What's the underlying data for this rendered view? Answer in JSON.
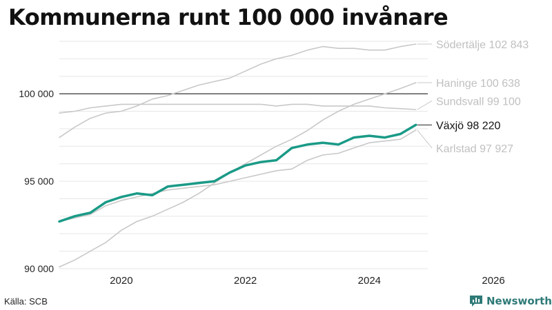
{
  "title": "Kommunerna runt 100 000 invånare",
  "source": "Källa: SCB",
  "brand": "Newsworthy",
  "chart_data": {
    "type": "line",
    "title": "Kommunerna runt 100 000 invånare",
    "xlabel": "",
    "ylabel": "",
    "xlim": [
      2019.0,
      2026.5
    ],
    "ylim": [
      90000,
      103000
    ],
    "x_ticks": [
      2020,
      2022,
      2024,
      2026
    ],
    "y_ticks": [
      90000,
      95000,
      100000
    ],
    "y_tick_labels": [
      "90 000",
      "95 000",
      "100 000"
    ],
    "reference_line": 100000,
    "grid": "horizontal",
    "series": [
      {
        "name": "Södertälje",
        "label": "Södertälje 102 843",
        "color": "#c8c8c8",
        "highlight": false,
        "x": [
          2019.0,
          2019.25,
          2019.5,
          2019.75,
          2020.0,
          2020.25,
          2020.5,
          2020.75,
          2021.0,
          2021.25,
          2021.5,
          2021.75,
          2022.0,
          2022.25,
          2022.5,
          2022.75,
          2023.0,
          2023.25,
          2023.5,
          2023.75,
          2024.0,
          2024.25,
          2024.5,
          2024.75
        ],
        "values": [
          97500,
          98100,
          98600,
          98900,
          99000,
          99300,
          99700,
          99900,
          100200,
          100500,
          100700,
          100900,
          101300,
          101700,
          102000,
          102200,
          102500,
          102700,
          102600,
          102600,
          102500,
          102500,
          102700,
          102843
        ]
      },
      {
        "name": "Haninge",
        "label": "Haninge 100 638",
        "color": "#c8c8c8",
        "highlight": false,
        "x": [
          2019.0,
          2019.25,
          2019.5,
          2019.75,
          2020.0,
          2020.25,
          2020.5,
          2020.75,
          2021.0,
          2021.25,
          2021.5,
          2021.75,
          2022.0,
          2022.25,
          2022.5,
          2022.75,
          2023.0,
          2023.25,
          2023.5,
          2023.75,
          2024.0,
          2024.25,
          2024.5,
          2024.75
        ],
        "values": [
          90100,
          90500,
          91000,
          91500,
          92200,
          92700,
          93000,
          93400,
          93800,
          94300,
          94900,
          95500,
          96000,
          96500,
          97000,
          97400,
          97900,
          98500,
          99000,
          99400,
          99700,
          100000,
          100300,
          100638
        ]
      },
      {
        "name": "Sundsvall",
        "label": "Sundsvall  99 100",
        "color": "#c8c8c8",
        "highlight": false,
        "x": [
          2019.0,
          2019.25,
          2019.5,
          2019.75,
          2020.0,
          2020.25,
          2020.5,
          2020.75,
          2021.0,
          2021.25,
          2021.5,
          2021.75,
          2022.0,
          2022.25,
          2022.5,
          2022.75,
          2023.0,
          2023.25,
          2023.5,
          2023.75,
          2024.0,
          2024.25,
          2024.5,
          2024.75
        ],
        "values": [
          98900,
          99000,
          99200,
          99300,
          99400,
          99400,
          99400,
          99400,
          99400,
          99400,
          99400,
          99400,
          99400,
          99400,
          99300,
          99400,
          99400,
          99300,
          99300,
          99300,
          99300,
          99200,
          99150,
          99100
        ]
      },
      {
        "name": "Karlstad",
        "label": "Karlstad  97 927",
        "color": "#c8c8c8",
        "highlight": false,
        "x": [
          2019.0,
          2019.25,
          2019.5,
          2019.75,
          2020.0,
          2020.25,
          2020.5,
          2020.75,
          2021.0,
          2021.25,
          2021.5,
          2021.75,
          2022.0,
          2022.25,
          2022.5,
          2022.75,
          2023.0,
          2023.25,
          2023.5,
          2023.75,
          2024.0,
          2024.25,
          2024.5,
          2024.75
        ],
        "values": [
          92700,
          92900,
          93100,
          93600,
          93900,
          94100,
          94300,
          94500,
          94600,
          94700,
          94800,
          95000,
          95200,
          95400,
          95600,
          95700,
          96200,
          96500,
          96600,
          96900,
          97200,
          97300,
          97400,
          97927
        ]
      },
      {
        "name": "Växjö",
        "label": "Växjö  98 220",
        "color": "#1a9a87",
        "highlight": true,
        "x": [
          2019.0,
          2019.25,
          2019.5,
          2019.75,
          2020.0,
          2020.25,
          2020.5,
          2020.75,
          2021.0,
          2021.25,
          2021.5,
          2021.75,
          2022.0,
          2022.25,
          2022.5,
          2022.75,
          2023.0,
          2023.25,
          2023.5,
          2023.75,
          2024.0,
          2024.25,
          2024.5,
          2024.75
        ],
        "values": [
          92700,
          93000,
          93200,
          93800,
          94100,
          94300,
          94200,
          94700,
          94800,
          94900,
          95000,
          95500,
          95900,
          96100,
          96200,
          96900,
          97100,
          97200,
          97100,
          97500,
          97600,
          97500,
          97700,
          98220
        ]
      }
    ]
  }
}
